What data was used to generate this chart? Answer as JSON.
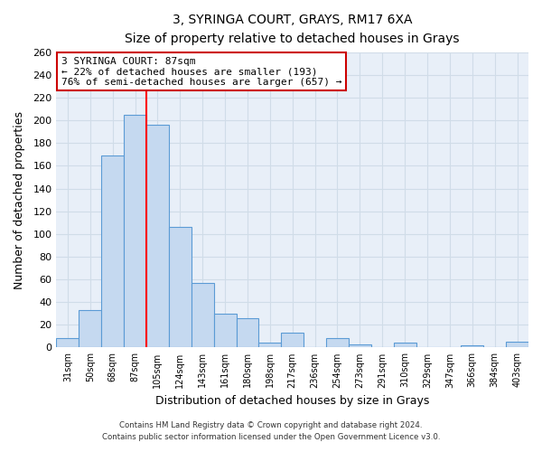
{
  "title": "3, SYRINGA COURT, GRAYS, RM17 6XA",
  "subtitle": "Size of property relative to detached houses in Grays",
  "xlabel": "Distribution of detached houses by size in Grays",
  "ylabel": "Number of detached properties",
  "bar_labels": [
    "31sqm",
    "50sqm",
    "68sqm",
    "87sqm",
    "105sqm",
    "124sqm",
    "143sqm",
    "161sqm",
    "180sqm",
    "198sqm",
    "217sqm",
    "236sqm",
    "254sqm",
    "273sqm",
    "291sqm",
    "310sqm",
    "329sqm",
    "347sqm",
    "366sqm",
    "384sqm",
    "403sqm"
  ],
  "bar_values": [
    8,
    33,
    169,
    205,
    196,
    106,
    57,
    30,
    26,
    4,
    13,
    0,
    8,
    3,
    0,
    4,
    0,
    0,
    2,
    0,
    5
  ],
  "bar_color": "#c5d9f0",
  "bar_edge_color": "#5b9bd5",
  "vline_x": 3.5,
  "vline_color": "#ff0000",
  "ylim": [
    0,
    260
  ],
  "yticks": [
    0,
    20,
    40,
    60,
    80,
    100,
    120,
    140,
    160,
    180,
    200,
    220,
    240,
    260
  ],
  "annotation_box_text": "3 SYRINGA COURT: 87sqm\n← 22% of detached houses are smaller (193)\n76% of semi-detached houses are larger (657) →",
  "footer_line1": "Contains HM Land Registry data © Crown copyright and database right 2024.",
  "footer_line2": "Contains public sector information licensed under the Open Government Licence v3.0.",
  "background_color": "#ffffff",
  "grid_color": "#d0dce8",
  "ax_bg_color": "#e8eff8"
}
